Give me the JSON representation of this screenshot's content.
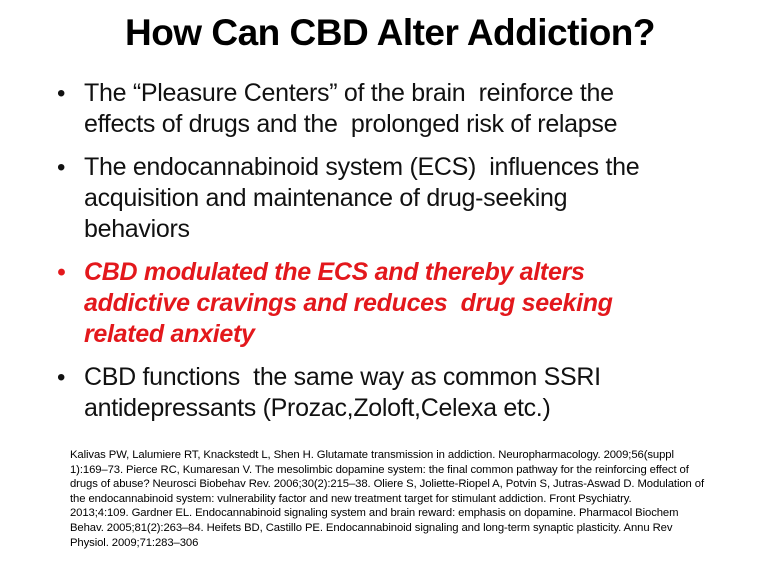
{
  "slide": {
    "title": "How Can CBD Alter Addiction?",
    "bullet_marker": "•",
    "bullets": [
      {
        "emphasis": false,
        "lines": [
          "The “Pleasure Centers” of the brain  reinforce the",
          "effects of drugs and the  prolonged risk of relapse"
        ]
      },
      {
        "emphasis": false,
        "lines": [
          "The endocannabinoid system (ECS)  influences the",
          "acquisition and maintenance of drug-seeking",
          "behaviors"
        ]
      },
      {
        "emphasis": true,
        "lines": [
          "CBD modulated the ECS and thereby alters",
          "addictive cravings and reduces  drug seeking",
          "related anxiety"
        ]
      },
      {
        "emphasis": false,
        "lines": [
          "CBD functions  the same way as common SSRI",
          "antidepressants (Prozac,Zoloft,Celexa etc.)"
        ]
      }
    ],
    "references": {
      "lines": [
        "Kalivas PW, Lalumiere RT, Knackstedt L, Shen H. Glutamate transmission in addiction. Neuropharmacology. 2009;56(suppl",
        "1):169–73. Pierce RC, Kumaresan V. The mesolimbic dopamine system: the final common pathway for the reinforcing effect of",
        "drugs of abuse? Neurosci Biobehav Rev. 2006;30(2):215–38. Oliere S, Joliette-Riopel A, Potvin S, Jutras-Aswad D. Modulation of",
        "the endocannabinoid system: vulnerability factor and new treatment target for stimulant addiction. Front Psychiatry.",
        "2013;4:109. Gardner EL. Endocannabinoid signaling system and brain reward: emphasis on dopamine. Pharmacol Biochem",
        "Behav. 2005;81(2):263–84. Heifets BD, Castillo PE. Endocannabinoid signaling and long-term synaptic plasticity. Annu Rev",
        "Physiol. 2009;71:283–306"
      ]
    },
    "colors": {
      "background": "#FFFFFF",
      "text": "#111111",
      "emphasis_red": "#E3181C"
    }
  }
}
